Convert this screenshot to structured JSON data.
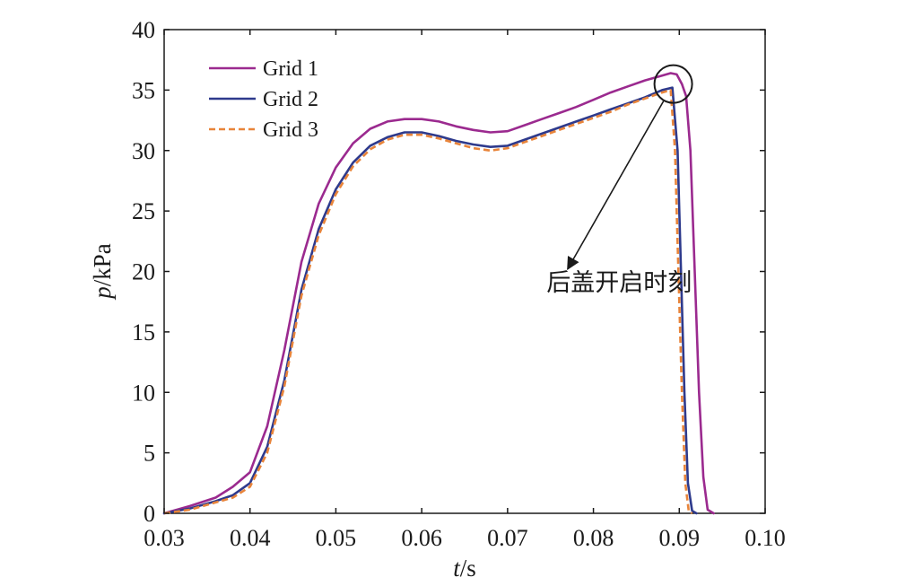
{
  "chart_data": {
    "type": "line",
    "xlabel_italic": "t",
    "xlabel_unit": "/s",
    "ylabel_italic": "p",
    "ylabel_unit": "/kPa",
    "xlim": [
      0.03,
      0.1
    ],
    "ylim": [
      0,
      40
    ],
    "xticks": [
      "0.03",
      "0.04",
      "0.05",
      "0.06",
      "0.07",
      "0.08",
      "0.09",
      "0.10"
    ],
    "yticks": [
      "0",
      "5",
      "10",
      "15",
      "20",
      "25",
      "30",
      "35",
      "40"
    ],
    "grid": false,
    "legend_position": "top-left",
    "series": [
      {
        "name": "Grid 1",
        "color": "#9b2a8f",
        "dash": "solid",
        "x": [
          0.03,
          0.033,
          0.036,
          0.038,
          0.04,
          0.042,
          0.044,
          0.046,
          0.048,
          0.05,
          0.052,
          0.054,
          0.056,
          0.058,
          0.06,
          0.062,
          0.064,
          0.066,
          0.068,
          0.07,
          0.072,
          0.074,
          0.076,
          0.078,
          0.08,
          0.082,
          0.084,
          0.086,
          0.088,
          0.089,
          0.0897,
          0.0903,
          0.0908,
          0.0913,
          0.0918,
          0.0923,
          0.0928,
          0.0933,
          0.094
        ],
        "y": [
          0,
          0.6,
          1.3,
          2.2,
          3.4,
          7.2,
          13.5,
          20.8,
          25.6,
          28.6,
          30.6,
          31.8,
          32.4,
          32.6,
          32.6,
          32.4,
          32.0,
          31.7,
          31.5,
          31.6,
          32.1,
          32.6,
          33.1,
          33.6,
          34.2,
          34.8,
          35.3,
          35.8,
          36.2,
          36.4,
          36.3,
          35.5,
          34.5,
          30.0,
          20.0,
          10.0,
          3.0,
          0.3,
          0
        ]
      },
      {
        "name": "Grid 2",
        "color": "#2e3a8c",
        "dash": "solid",
        "x": [
          0.03,
          0.033,
          0.036,
          0.038,
          0.04,
          0.042,
          0.044,
          0.046,
          0.048,
          0.05,
          0.052,
          0.054,
          0.056,
          0.058,
          0.06,
          0.062,
          0.064,
          0.066,
          0.068,
          0.07,
          0.072,
          0.074,
          0.076,
          0.078,
          0.08,
          0.082,
          0.084,
          0.086,
          0.088,
          0.0892,
          0.0898,
          0.0902,
          0.0906,
          0.091,
          0.0915,
          0.092
        ],
        "y": [
          0,
          0.4,
          1.0,
          1.5,
          2.5,
          5.5,
          11.0,
          18.5,
          23.5,
          26.8,
          29.0,
          30.4,
          31.1,
          31.5,
          31.5,
          31.2,
          30.8,
          30.5,
          30.3,
          30.4,
          30.9,
          31.4,
          31.9,
          32.4,
          32.9,
          33.4,
          33.9,
          34.4,
          35.0,
          35.2,
          30.0,
          20.0,
          10.0,
          2.5,
          0.2,
          0
        ]
      },
      {
        "name": "Grid 3",
        "color": "#e8843a",
        "dash": "dashed",
        "x": [
          0.03,
          0.033,
          0.036,
          0.038,
          0.04,
          0.042,
          0.044,
          0.046,
          0.048,
          0.05,
          0.052,
          0.054,
          0.056,
          0.058,
          0.06,
          0.062,
          0.064,
          0.066,
          0.068,
          0.07,
          0.072,
          0.074,
          0.076,
          0.078,
          0.08,
          0.082,
          0.084,
          0.086,
          0.088,
          0.089,
          0.0895,
          0.0899,
          0.0903,
          0.0907,
          0.0911,
          0.0915
        ],
        "y": [
          0,
          0.3,
          0.9,
          1.3,
          2.2,
          5.0,
          10.5,
          18.0,
          23.0,
          26.4,
          28.7,
          30.1,
          30.9,
          31.3,
          31.3,
          31.0,
          30.6,
          30.2,
          30.0,
          30.2,
          30.7,
          31.2,
          31.7,
          32.2,
          32.7,
          33.2,
          33.8,
          34.3,
          34.8,
          35.0,
          30.0,
          20.0,
          10.0,
          2.5,
          0.2,
          0
        ]
      }
    ],
    "annotations": [
      {
        "text": "后盖开启时刻",
        "circle_center": [
          0.0893,
          35.5
        ],
        "arrow_to": [
          0.077,
          20.2
        ],
        "text_anchor_data": [
          0.083,
          18.4
        ]
      }
    ]
  }
}
